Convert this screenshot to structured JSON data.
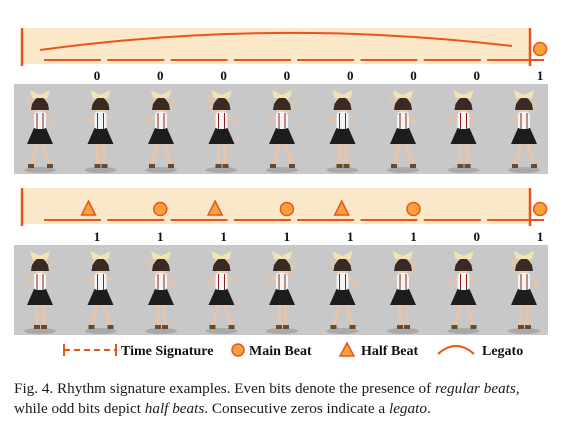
{
  "figure": {
    "colors": {
      "band": "#fbe8c9",
      "accent": "#e9541b",
      "marker_fill": "#f6a13c",
      "photo_bg": "#c8c8c8",
      "text": "#111111"
    },
    "row1": {
      "bits": [
        "0",
        "0",
        "0",
        "0",
        "0",
        "0",
        "0",
        "1"
      ],
      "markers": [
        "none",
        "none",
        "none",
        "none",
        "none",
        "none",
        "none",
        "main-beat"
      ],
      "legato": true,
      "dancer_count": 9
    },
    "row2": {
      "bits": [
        "1",
        "1",
        "1",
        "1",
        "1",
        "1",
        "0",
        "1"
      ],
      "markers": [
        "half-beat",
        "main-beat",
        "half-beat",
        "main-beat",
        "half-beat",
        "main-beat",
        "none",
        "main-beat"
      ],
      "legato": false,
      "dancer_count": 9
    },
    "legend": {
      "time_signature": "Time Signature",
      "main_beat": "Main Beat",
      "half_beat": "Half Beat",
      "legato": "Legato"
    }
  },
  "caption": {
    "label": "Fig. 4.",
    "text_1": "Rhythm signature examples. Even bits denote the presence of",
    "em_1": "regular beats",
    "text_2": ", while odd bits depict",
    "em_2": "half beats",
    "text_3": ". Consecutive zeros indicate a",
    "em_3": "legato",
    "text_4": "."
  }
}
